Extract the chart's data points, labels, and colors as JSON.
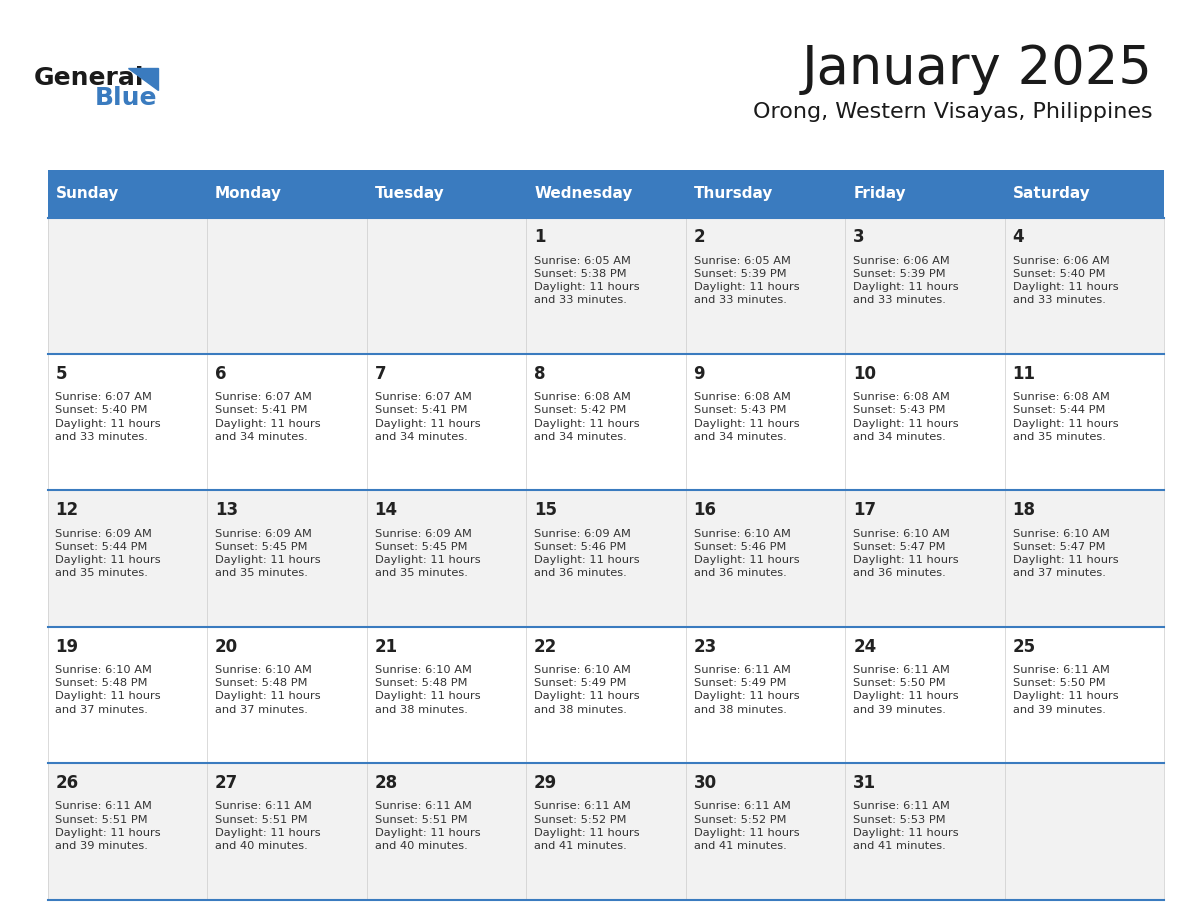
{
  "title": "January 2025",
  "subtitle": "Orong, Western Visayas, Philippines",
  "header_bg": "#3a7bbf",
  "header_text": "#ffffff",
  "row_bg_odd": "#f2f2f2",
  "row_bg_even": "#ffffff",
  "border_color": "#3a7bbf",
  "day_headers": [
    "Sunday",
    "Monday",
    "Tuesday",
    "Wednesday",
    "Thursday",
    "Friday",
    "Saturday"
  ],
  "calendar_data": [
    [
      {
        "day": "",
        "info": ""
      },
      {
        "day": "",
        "info": ""
      },
      {
        "day": "",
        "info": ""
      },
      {
        "day": "1",
        "info": "Sunrise: 6:05 AM\nSunset: 5:38 PM\nDaylight: 11 hours\nand 33 minutes."
      },
      {
        "day": "2",
        "info": "Sunrise: 6:05 AM\nSunset: 5:39 PM\nDaylight: 11 hours\nand 33 minutes."
      },
      {
        "day": "3",
        "info": "Sunrise: 6:06 AM\nSunset: 5:39 PM\nDaylight: 11 hours\nand 33 minutes."
      },
      {
        "day": "4",
        "info": "Sunrise: 6:06 AM\nSunset: 5:40 PM\nDaylight: 11 hours\nand 33 minutes."
      }
    ],
    [
      {
        "day": "5",
        "info": "Sunrise: 6:07 AM\nSunset: 5:40 PM\nDaylight: 11 hours\nand 33 minutes."
      },
      {
        "day": "6",
        "info": "Sunrise: 6:07 AM\nSunset: 5:41 PM\nDaylight: 11 hours\nand 34 minutes."
      },
      {
        "day": "7",
        "info": "Sunrise: 6:07 AM\nSunset: 5:41 PM\nDaylight: 11 hours\nand 34 minutes."
      },
      {
        "day": "8",
        "info": "Sunrise: 6:08 AM\nSunset: 5:42 PM\nDaylight: 11 hours\nand 34 minutes."
      },
      {
        "day": "9",
        "info": "Sunrise: 6:08 AM\nSunset: 5:43 PM\nDaylight: 11 hours\nand 34 minutes."
      },
      {
        "day": "10",
        "info": "Sunrise: 6:08 AM\nSunset: 5:43 PM\nDaylight: 11 hours\nand 34 minutes."
      },
      {
        "day": "11",
        "info": "Sunrise: 6:08 AM\nSunset: 5:44 PM\nDaylight: 11 hours\nand 35 minutes."
      }
    ],
    [
      {
        "day": "12",
        "info": "Sunrise: 6:09 AM\nSunset: 5:44 PM\nDaylight: 11 hours\nand 35 minutes."
      },
      {
        "day": "13",
        "info": "Sunrise: 6:09 AM\nSunset: 5:45 PM\nDaylight: 11 hours\nand 35 minutes."
      },
      {
        "day": "14",
        "info": "Sunrise: 6:09 AM\nSunset: 5:45 PM\nDaylight: 11 hours\nand 35 minutes."
      },
      {
        "day": "15",
        "info": "Sunrise: 6:09 AM\nSunset: 5:46 PM\nDaylight: 11 hours\nand 36 minutes."
      },
      {
        "day": "16",
        "info": "Sunrise: 6:10 AM\nSunset: 5:46 PM\nDaylight: 11 hours\nand 36 minutes."
      },
      {
        "day": "17",
        "info": "Sunrise: 6:10 AM\nSunset: 5:47 PM\nDaylight: 11 hours\nand 36 minutes."
      },
      {
        "day": "18",
        "info": "Sunrise: 6:10 AM\nSunset: 5:47 PM\nDaylight: 11 hours\nand 37 minutes."
      }
    ],
    [
      {
        "day": "19",
        "info": "Sunrise: 6:10 AM\nSunset: 5:48 PM\nDaylight: 11 hours\nand 37 minutes."
      },
      {
        "day": "20",
        "info": "Sunrise: 6:10 AM\nSunset: 5:48 PM\nDaylight: 11 hours\nand 37 minutes."
      },
      {
        "day": "21",
        "info": "Sunrise: 6:10 AM\nSunset: 5:48 PM\nDaylight: 11 hours\nand 38 minutes."
      },
      {
        "day": "22",
        "info": "Sunrise: 6:10 AM\nSunset: 5:49 PM\nDaylight: 11 hours\nand 38 minutes."
      },
      {
        "day": "23",
        "info": "Sunrise: 6:11 AM\nSunset: 5:49 PM\nDaylight: 11 hours\nand 38 minutes."
      },
      {
        "day": "24",
        "info": "Sunrise: 6:11 AM\nSunset: 5:50 PM\nDaylight: 11 hours\nand 39 minutes."
      },
      {
        "day": "25",
        "info": "Sunrise: 6:11 AM\nSunset: 5:50 PM\nDaylight: 11 hours\nand 39 minutes."
      }
    ],
    [
      {
        "day": "26",
        "info": "Sunrise: 6:11 AM\nSunset: 5:51 PM\nDaylight: 11 hours\nand 39 minutes."
      },
      {
        "day": "27",
        "info": "Sunrise: 6:11 AM\nSunset: 5:51 PM\nDaylight: 11 hours\nand 40 minutes."
      },
      {
        "day": "28",
        "info": "Sunrise: 6:11 AM\nSunset: 5:51 PM\nDaylight: 11 hours\nand 40 minutes."
      },
      {
        "day": "29",
        "info": "Sunrise: 6:11 AM\nSunset: 5:52 PM\nDaylight: 11 hours\nand 41 minutes."
      },
      {
        "day": "30",
        "info": "Sunrise: 6:11 AM\nSunset: 5:52 PM\nDaylight: 11 hours\nand 41 minutes."
      },
      {
        "day": "31",
        "info": "Sunrise: 6:11 AM\nSunset: 5:53 PM\nDaylight: 11 hours\nand 41 minutes."
      },
      {
        "day": "",
        "info": ""
      }
    ]
  ],
  "logo_general_color": "#1a1a1a",
  "logo_blue_color": "#3a7bbf",
  "title_color": "#1a1a1a",
  "subtitle_color": "#1a1a1a"
}
